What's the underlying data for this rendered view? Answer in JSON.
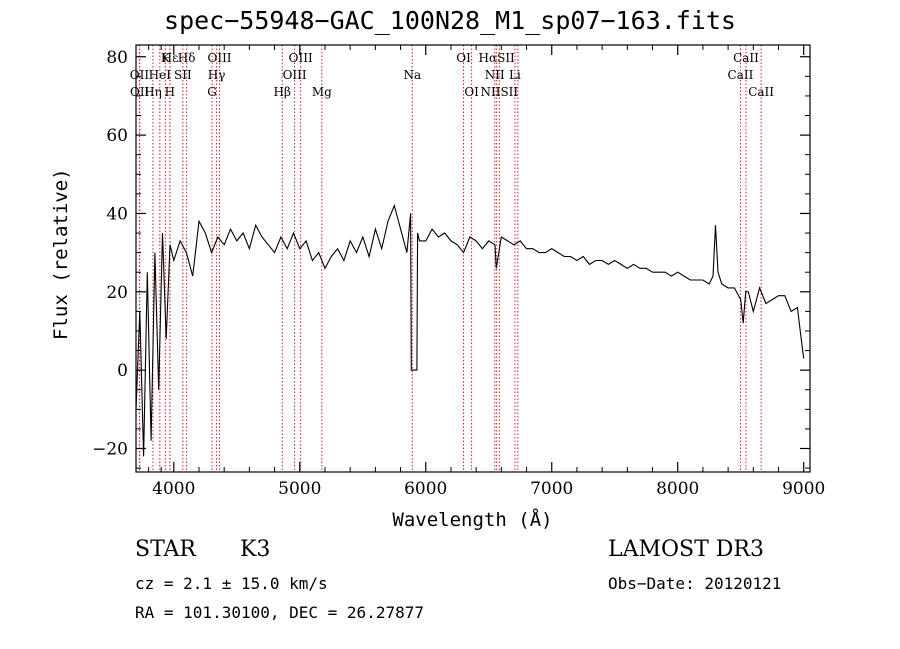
{
  "chart_data": {
    "type": "line",
    "title": "spec−55948−GAC_100N28_M1_sp07−163.fits",
    "xlabel": "Wavelength (Å)",
    "ylabel": "Flux (relative)",
    "xlim": [
      3700,
      9050
    ],
    "ylim": [
      -26,
      83
    ],
    "xticks": [
      4000,
      5000,
      6000,
      7000,
      8000,
      9000
    ],
    "xtick_labels": [
      "4000",
      "5000",
      "6000",
      "7000",
      "8000",
      "9000"
    ],
    "yticks": [
      -20,
      0,
      20,
      40,
      60,
      80
    ],
    "ytick_labels": [
      "−20",
      "0",
      "20",
      "40",
      "60",
      "80"
    ],
    "series": [
      {
        "name": "flux",
        "x": [
          3700,
          3730,
          3760,
          3790,
          3820,
          3850,
          3880,
          3910,
          3940,
          3970,
          4000,
          4050,
          4100,
          4150,
          4200,
          4250,
          4300,
          4350,
          4400,
          4450,
          4500,
          4550,
          4600,
          4650,
          4700,
          4750,
          4800,
          4850,
          4900,
          4950,
          5000,
          5050,
          5100,
          5150,
          5200,
          5250,
          5300,
          5350,
          5400,
          5450,
          5500,
          5550,
          5600,
          5650,
          5700,
          5750,
          5800,
          5850,
          5880,
          5885,
          5900,
          5930,
          5935,
          5950,
          6000,
          6050,
          6100,
          6150,
          6200,
          6250,
          6300,
          6350,
          6400,
          6450,
          6500,
          6550,
          6560,
          6600,
          6650,
          6700,
          6750,
          6800,
          6850,
          6900,
          6950,
          7000,
          7050,
          7100,
          7150,
          7200,
          7250,
          7300,
          7350,
          7400,
          7450,
          7500,
          7550,
          7600,
          7650,
          7700,
          7750,
          7800,
          7850,
          7900,
          7950,
          8000,
          8050,
          8100,
          8150,
          8200,
          8250,
          8280,
          8300,
          8320,
          8350,
          8400,
          8450,
          8500,
          8520,
          8540,
          8560,
          8600,
          8650,
          8700,
          8750,
          8800,
          8850,
          8900,
          8950,
          8980,
          9000
        ],
        "y": [
          -10,
          15,
          -22,
          25,
          -18,
          30,
          -5,
          35,
          8,
          32,
          28,
          33,
          30,
          24,
          38,
          35,
          30,
          34,
          32,
          36,
          33,
          35,
          31,
          37,
          34,
          32,
          30,
          34,
          31,
          35,
          31,
          33,
          28,
          30,
          26,
          29,
          31,
          28,
          33,
          30,
          34,
          29,
          36,
          31,
          38,
          42,
          36,
          30,
          40,
          0,
          0,
          0,
          35,
          33,
          33,
          36,
          34,
          35,
          33,
          32,
          30,
          34,
          33,
          31,
          33,
          32,
          26,
          34,
          33,
          32,
          33,
          31,
          31,
          30,
          30,
          31,
          30,
          29,
          29,
          28,
          29,
          27,
          28,
          28,
          27,
          28,
          27,
          26,
          27,
          26,
          26,
          25,
          25,
          25,
          24,
          25,
          24,
          23,
          23,
          23,
          22,
          24,
          37,
          25,
          22,
          21,
          21,
          18,
          12,
          20,
          20,
          15,
          21,
          17,
          18,
          19,
          19,
          15,
          16,
          8,
          3
        ]
      }
    ],
    "lines": [
      {
        "name": "Hε",
        "wave": 3970,
        "label": "Hε",
        "row": 1
      },
      {
        "name": "K",
        "wave": 3933,
        "label": "K",
        "row": 1
      },
      {
        "name": "Hδ",
        "wave": 4102,
        "label": "Hδ",
        "row": 1
      },
      {
        "name": "OIII",
        "wave": 4363,
        "label": "OIII",
        "row": 1
      },
      {
        "name": "OIII",
        "wave": 5007,
        "label": "OIII",
        "row": 1
      },
      {
        "name": "OI",
        "wave": 6300,
        "label": "OI",
        "row": 1
      },
      {
        "name": "Hα",
        "wave": 6563,
        "label": "HαSII",
        "row": 1
      },
      {
        "name": "CaII",
        "wave": 8542,
        "label": "CaII",
        "row": 1
      },
      {
        "name": "OII",
        "wave": 3727,
        "label": "OII",
        "row": 2
      },
      {
        "name": "HeI",
        "wave": 3889,
        "label": "HeI",
        "row": 2
      },
      {
        "name": "SII",
        "wave": 4072,
        "label": "SII",
        "row": 2
      },
      {
        "name": "Hγ",
        "wave": 4340,
        "label": "Hγ",
        "row": 2
      },
      {
        "name": "OIII",
        "wave": 4959,
        "label": "OIII",
        "row": 2
      },
      {
        "name": "Na",
        "wave": 5893,
        "label": "Na",
        "row": 2
      },
      {
        "name": "NII",
        "wave": 6548,
        "label": "NII",
        "row": 2
      },
      {
        "name": "Li",
        "wave": 6708,
        "label": "Li",
        "row": 2
      },
      {
        "name": "CaII",
        "wave": 8498,
        "label": "CaII",
        "row": 2
      },
      {
        "name": "OII",
        "wave": 3729,
        "label": "OII",
        "row": 3
      },
      {
        "name": "Hη",
        "wave": 3835,
        "label": "Hη",
        "row": 3
      },
      {
        "name": "H",
        "wave": 3969,
        "label": "H",
        "row": 3
      },
      {
        "name": "G",
        "wave": 4304,
        "label": "G",
        "row": 3
      },
      {
        "name": "Hβ",
        "wave": 4861,
        "label": "Hβ",
        "row": 3
      },
      {
        "name": "Mg",
        "wave": 5175,
        "label": "Mg",
        "row": 3
      },
      {
        "name": "OI",
        "wave": 6364,
        "label": "OI",
        "row": 3
      },
      {
        "name": "NII",
        "wave": 6584,
        "label": "NIISII",
        "row": 3
      },
      {
        "name": "SII",
        "wave": 6731,
        "label": "",
        "row": 3
      },
      {
        "name": "CaII",
        "wave": 8662,
        "label": "CaII",
        "row": 3
      }
    ],
    "line_color": "#cc2222"
  },
  "info": {
    "class": "STAR",
    "subclass": "K3",
    "survey": "LAMOST DR3",
    "cz": "cz = 2.1 ± 15.0 km/s",
    "obs_date": "Obs−Date: 20120121",
    "radec": "RA = 101.30100, DEC =  26.27877"
  }
}
